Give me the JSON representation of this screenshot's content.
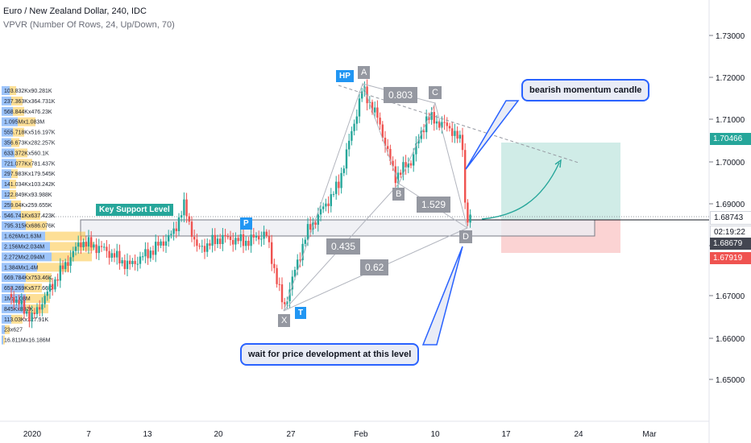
{
  "header": {
    "symbol_title": "Euro / New Zealand Dollar, 240, IDC",
    "indicator_title": "VPVR (Number Of Rows, 24, Up/Down, 70)"
  },
  "price_axis": {
    "ticks": [
      "1.73000",
      "1.72000",
      "1.71000",
      "1.70000",
      "1.69000",
      "1.68000",
      "1.67000",
      "1.66000",
      "1.65000"
    ],
    "badges": [
      {
        "label": "1.70466",
        "color": "#26a69a"
      },
      {
        "label": "1.68743",
        "color": "#ffffff"
      },
      {
        "label": "02:19:22",
        "color": "#ffffff"
      },
      {
        "label": "1.68679",
        "color": "#434651"
      },
      {
        "label": "1.67919",
        "color": "#ef5350"
      }
    ]
  },
  "time_axis": {
    "labels": [
      "2020",
      "7",
      "13",
      "20",
      "27",
      "Feb",
      "10",
      "17",
      "24",
      "Mar"
    ]
  },
  "volume_profile": {
    "rows": [
      "103.832Kx90.281K",
      "237.363Kx364.731K",
      "568.844Kx476.23K",
      "1.095Mx1.083M",
      "555.718Kx516.197K",
      "356.673Kx282.257K",
      "633.372Kx560.1K",
      "721.077Kx781.437K",
      "297.983Kx179.545K",
      "141.034Kx103.242K",
      "122.849Kx93.988K",
      "259.04Kx259.655K",
      "546.741Kx637.423K",
      "795.315Kx686.076K",
      "1.626Mx1.63M",
      "2.156Mx2.034M",
      "2.272Mx2.094M",
      "1.384Mx1.4M",
      "669.784Kx753.46K",
      "653.269Kx577.66K",
      "1Mx1.08M",
      "845Kx832K",
      "113.03Kx127.91K",
      "23x627",
      "16.811Mx16.186M"
    ]
  },
  "pattern": {
    "points": {
      "HP": "HP",
      "A": "A",
      "B": "B",
      "C": "C",
      "D": "D",
      "X": "X",
      "T": "T",
      "P": "P"
    },
    "ratios": {
      "ab": "0.803",
      "bc": "1.529",
      "xb": "0.435",
      "xd": "0.62"
    }
  },
  "annotations": {
    "key_support": "Key Support Level",
    "callout_top": "bearish momentum candle",
    "callout_bottom": "wait for price development at this level"
  },
  "colors": {
    "up": "#26a69a",
    "down": "#ef5350",
    "pattern_line": "#b2b5be",
    "label_bg": "#9598a1",
    "blue_label": "#2196f3",
    "vp_up": "#5b9cf6",
    "vp_down": "#fbc02d",
    "callout_border": "#2962ff",
    "target_zone": "#d0ece7",
    "stop_zone": "#fbd3d3"
  }
}
